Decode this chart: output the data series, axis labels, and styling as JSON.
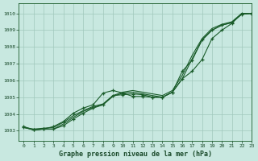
{
  "title": "Graphe pression niveau de la mer (hPa)",
  "background_color": "#c8e8e0",
  "grid_color": "#a0c8bc",
  "line_color": "#1a5c2a",
  "xlim": [
    -0.5,
    23
  ],
  "ylim": [
    1002.4,
    1010.6
  ],
  "yticks": [
    1003,
    1004,
    1005,
    1006,
    1007,
    1008,
    1009,
    1010
  ],
  "xticks": [
    0,
    1,
    2,
    3,
    4,
    5,
    6,
    7,
    8,
    9,
    10,
    11,
    12,
    13,
    14,
    15,
    16,
    17,
    18,
    19,
    20,
    21,
    22,
    23
  ],
  "smooth_series": [
    [
      1003.2,
      1003.1,
      1003.15,
      1003.2,
      1003.5,
      1003.9,
      1004.2,
      1004.45,
      1004.6,
      1005.1,
      1005.3,
      1005.4,
      1005.3,
      1005.2,
      1005.1,
      1005.4,
      1006.3,
      1007.5,
      1008.5,
      1009.1,
      1009.35,
      1009.5,
      1010.0,
      1010.0
    ],
    [
      1003.2,
      1003.05,
      1003.1,
      1003.1,
      1003.4,
      1003.8,
      1004.15,
      1004.4,
      1004.55,
      1005.05,
      1005.25,
      1005.3,
      1005.2,
      1005.1,
      1005.0,
      1005.3,
      1006.1,
      1007.3,
      1008.4,
      1009.0,
      1009.3,
      1009.45,
      1009.95,
      1010.0
    ]
  ],
  "marker_series": [
    [
      1003.2,
      1003.05,
      1003.1,
      1003.25,
      1003.55,
      1004.05,
      1004.35,
      1004.55,
      1005.25,
      1005.4,
      1005.25,
      1005.05,
      1005.05,
      1005.0,
      1005.0,
      1005.3,
      1006.55,
      1007.2,
      1008.45,
      1009.0,
      1009.3,
      1009.45,
      1009.95,
      1010.0
    ],
    [
      1003.25,
      1003.05,
      1003.1,
      1003.1,
      1003.3,
      1003.7,
      1004.05,
      1004.35,
      1004.55,
      1005.1,
      1005.15,
      1005.2,
      1005.15,
      1005.0,
      1005.0,
      1005.3,
      1006.1,
      1006.55,
      1007.25,
      1008.5,
      1009.0,
      1009.4,
      1010.0,
      1010.0
    ]
  ]
}
